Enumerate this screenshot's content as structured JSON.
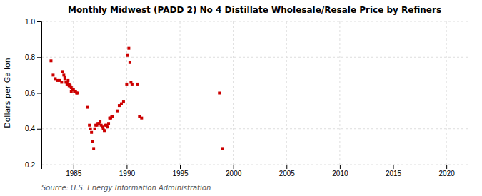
{
  "chart_data": {
    "type": "scatter",
    "title": "Monthly Midwest (PADD 2) No 4 Distillate Wholesale/Resale Price by Refiners",
    "ylabel": "Dollars per Gallon",
    "annotations": [
      "Source: U.S. Energy Information Administration"
    ],
    "color": "#cc0000",
    "marker": "square",
    "grid": true,
    "xlim": [
      1982,
      2022
    ],
    "ylim": [
      0.2,
      1.0
    ],
    "xticks": [
      1985,
      1990,
      1995,
      2000,
      2005,
      2010,
      2015,
      2020
    ],
    "yticks": [
      0.2,
      0.4,
      0.6,
      0.8,
      {
        "value": 1.0,
        "label": "1.0"
      }
    ],
    "x": [
      1982.9,
      1983.1,
      1983.3,
      1983.5,
      1983.7,
      1983.9,
      1984.0,
      1984.1,
      1984.2,
      1984.3,
      1984.4,
      1984.5,
      1984.6,
      1984.7,
      1984.8,
      1984.9,
      1984.2,
      1984.4,
      1984.6,
      1984.8,
      1985.0,
      1985.1,
      1985.2,
      1985.3,
      1985.4,
      1986.3,
      1986.5,
      1986.6,
      1986.7,
      1986.8,
      1986.9,
      1987.0,
      1987.1,
      1987.2,
      1987.3,
      1987.4,
      1987.5,
      1987.6,
      1987.7,
      1987.8,
      1987.9,
      1988.0,
      1988.1,
      1988.2,
      1988.3,
      1988.4,
      1988.5,
      1988.6,
      1988.7,
      1989.1,
      1989.3,
      1989.5,
      1989.7,
      1990.0,
      1990.1,
      1990.2,
      1990.3,
      1990.4,
      1990.5,
      1991.0,
      1991.2,
      1991.4,
      1998.7,
      1999.0
    ],
    "values": [
      0.78,
      0.7,
      0.68,
      0.67,
      0.67,
      0.66,
      0.72,
      0.7,
      0.68,
      0.66,
      0.65,
      0.67,
      0.65,
      0.64,
      0.63,
      0.62,
      0.69,
      0.66,
      0.64,
      0.61,
      0.62,
      0.61,
      0.61,
      0.6,
      0.6,
      0.52,
      0.42,
      0.4,
      0.38,
      0.33,
      0.29,
      0.4,
      0.42,
      0.42,
      0.43,
      0.43,
      0.44,
      0.42,
      0.41,
      0.4,
      0.39,
      0.42,
      0.42,
      0.41,
      0.43,
      0.46,
      0.46,
      0.47,
      0.47,
      0.5,
      0.53,
      0.54,
      0.55,
      0.65,
      0.81,
      0.85,
      0.77,
      0.66,
      0.65,
      0.65,
      0.47,
      0.46,
      0.6,
      0.29
    ]
  }
}
